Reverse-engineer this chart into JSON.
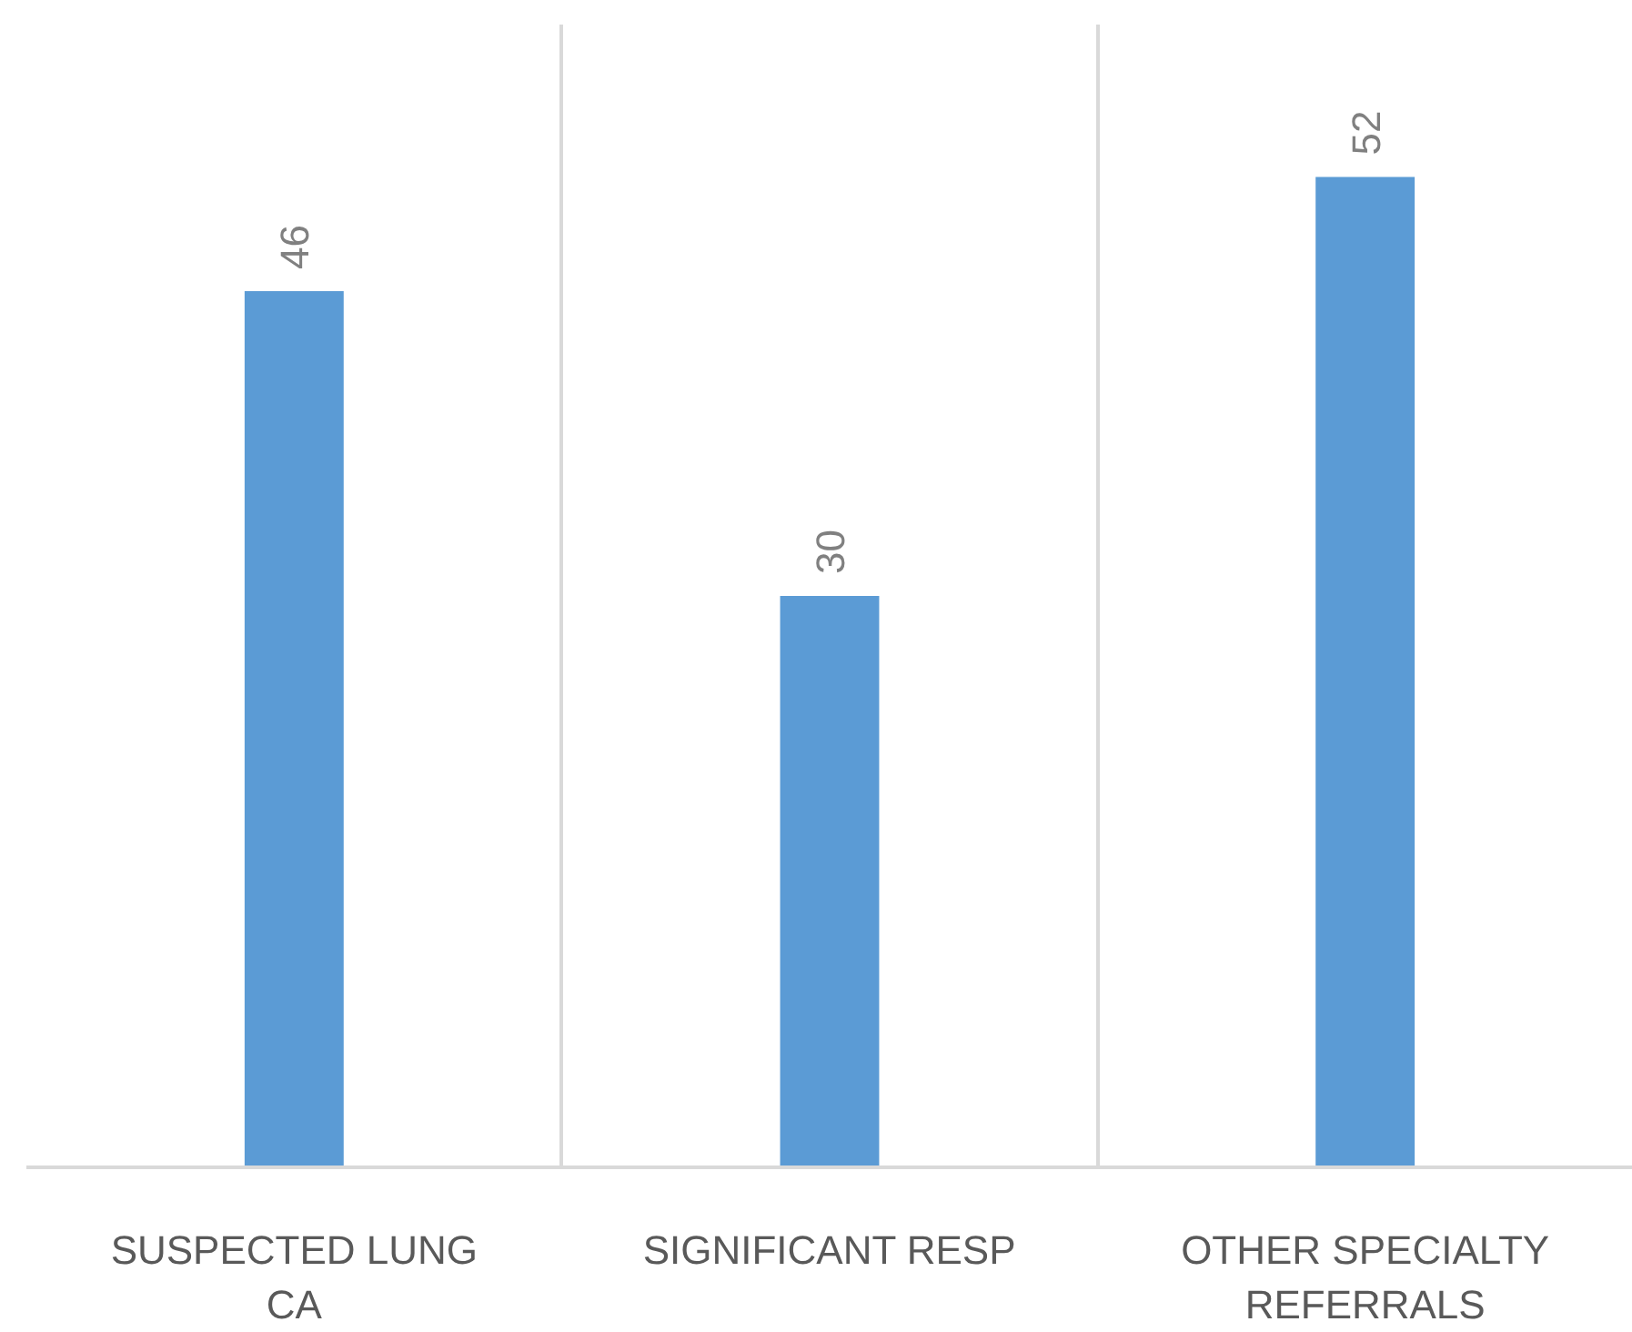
{
  "chart_data": {
    "type": "bar",
    "categories": [
      "SUSPECTED LUNG CA",
      "SIGNIFICANT RESP",
      "OTHER SPECIALTY REFERRALS"
    ],
    "values": [
      46,
      30,
      52
    ],
    "color": "#5b9bd5",
    "ylim": [
      0,
      60
    ],
    "data_labels": true,
    "grid": "x",
    "tick_labels": "x"
  }
}
